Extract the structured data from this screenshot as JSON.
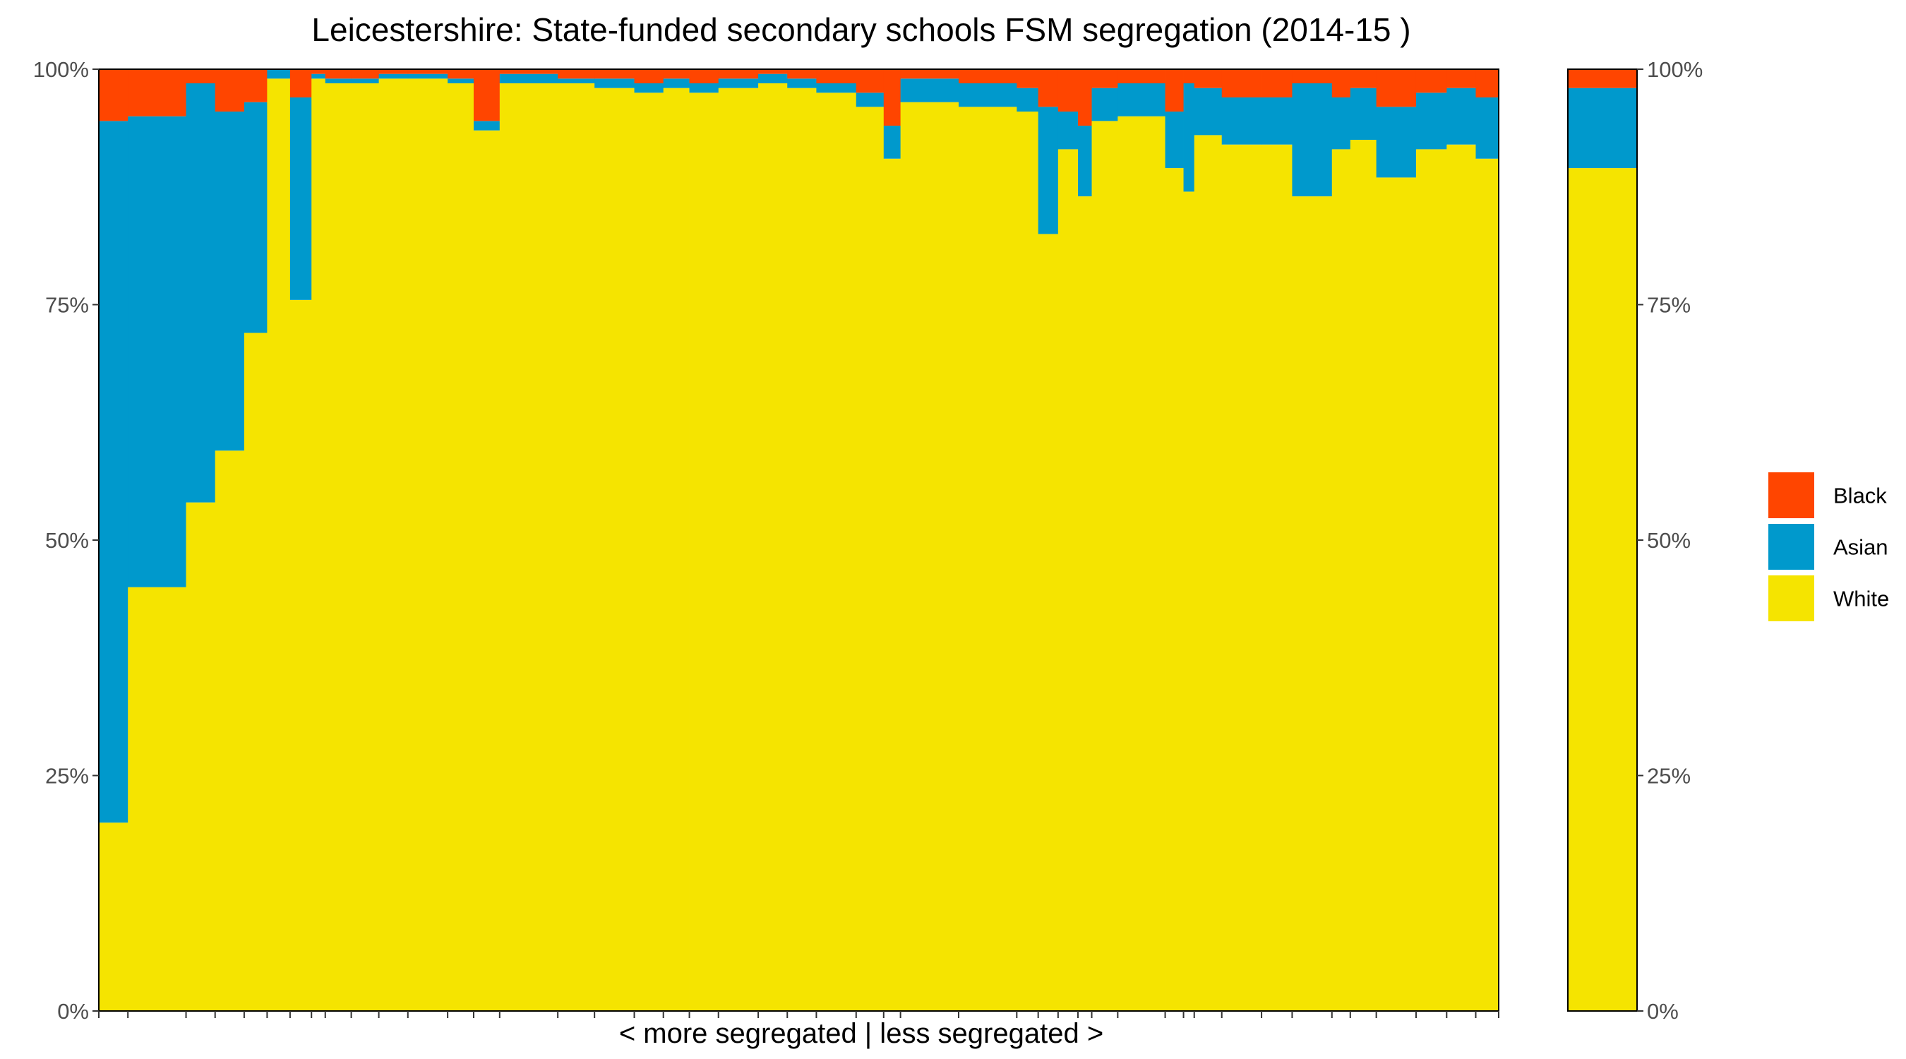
{
  "chart_data": {
    "type": "bar",
    "stacked": true,
    "variable_width": true,
    "title": "Leicestershire: State-funded secondary schools FSM segregation (2014-15 )",
    "xlabel": "< more segregated | less segregated >",
    "ylabel": "",
    "ylim": [
      0,
      1
    ],
    "y_ticks": [
      "0%",
      "25%",
      "50%",
      "75%",
      "100%"
    ],
    "series_order": [
      "White",
      "Asian",
      "Black"
    ],
    "colors": {
      "White": "#f5e400",
      "Asian": "#0099cc",
      "Black": "#ff4500"
    },
    "legend": {
      "position": "right",
      "entries": [
        "Black",
        "Asian",
        "White"
      ]
    },
    "schools": [
      {
        "w": 0.95,
        "white": 0.2,
        "asian": 0.745
      },
      {
        "w": 1.9,
        "white": 0.45,
        "asian": 0.5
      },
      {
        "w": 0.95,
        "white": 0.54,
        "asian": 0.445
      },
      {
        "w": 0.95,
        "white": 0.595,
        "asian": 0.36
      },
      {
        "w": 0.75,
        "white": 0.72,
        "asian": 0.245
      },
      {
        "w": 0.75,
        "white": 0.99,
        "asian": 0.01
      },
      {
        "w": 0.7,
        "white": 0.755,
        "asian": 0.215
      },
      {
        "w": 0.45,
        "white": 0.99,
        "asian": 0.005
      },
      {
        "w": 0.85,
        "white": 0.985,
        "asian": 0.005
      },
      {
        "w": 0.9,
        "white": 0.985,
        "asian": 0.005
      },
      {
        "w": 0.95,
        "white": 0.99,
        "asian": 0.005
      },
      {
        "w": 1.3,
        "white": 0.99,
        "asian": 0.005
      },
      {
        "w": 0.85,
        "white": 0.985,
        "asian": 0.005
      },
      {
        "w": 0.85,
        "white": 0.935,
        "asian": 0.01
      },
      {
        "w": 1.9,
        "white": 0.985,
        "asian": 0.01
      },
      {
        "w": 1.2,
        "white": 0.985,
        "asian": 0.005
      },
      {
        "w": 1.3,
        "white": 0.98,
        "asian": 0.01
      },
      {
        "w": 0.95,
        "white": 0.975,
        "asian": 0.01
      },
      {
        "w": 0.85,
        "white": 0.98,
        "asian": 0.01
      },
      {
        "w": 0.95,
        "white": 0.975,
        "asian": 0.01
      },
      {
        "w": 1.3,
        "white": 0.98,
        "asian": 0.01
      },
      {
        "w": 0.95,
        "white": 0.985,
        "asian": 0.01
      },
      {
        "w": 0.95,
        "white": 0.98,
        "asian": 0.01
      },
      {
        "w": 1.3,
        "white": 0.975,
        "asian": 0.01
      },
      {
        "w": 0.9,
        "white": 0.96,
        "asian": 0.015
      },
      {
        "w": 0.55,
        "white": 0.905,
        "asian": 0.035
      },
      {
        "w": 1.9,
        "white": 0.965,
        "asian": 0.025
      },
      {
        "w": 1.9,
        "white": 0.96,
        "asian": 0.025
      },
      {
        "w": 0.7,
        "white": 0.955,
        "asian": 0.025
      },
      {
        "w": 0.65,
        "white": 0.825,
        "asian": 0.135
      },
      {
        "w": 0.65,
        "white": 0.915,
        "asian": 0.04
      },
      {
        "w": 0.45,
        "white": 0.865,
        "asian": 0.075
      },
      {
        "w": 0.85,
        "white": 0.945,
        "asian": 0.035
      },
      {
        "w": 1.55,
        "white": 0.95,
        "asian": 0.035
      },
      {
        "w": 0.6,
        "white": 0.895,
        "asian": 0.06
      },
      {
        "w": 0.35,
        "white": 0.87,
        "asian": 0.115
      },
      {
        "w": 0.9,
        "white": 0.93,
        "asian": 0.05
      },
      {
        "w": 1.3,
        "white": 0.92,
        "asian": 0.05
      },
      {
        "w": 1.0,
        "white": 0.92,
        "asian": 0.05
      },
      {
        "w": 1.3,
        "white": 0.865,
        "asian": 0.12
      },
      {
        "w": 0.6,
        "white": 0.915,
        "asian": 0.055
      },
      {
        "w": 0.85,
        "white": 0.925,
        "asian": 0.055
      },
      {
        "w": 1.3,
        "white": 0.885,
        "asian": 0.075
      },
      {
        "w": 1.0,
        "white": 0.915,
        "asian": 0.06
      },
      {
        "w": 0.95,
        "white": 0.92,
        "asian": 0.06
      },
      {
        "w": 0.75,
        "white": 0.905,
        "asian": 0.065
      }
    ],
    "overall": {
      "white": 0.895,
      "asian": 0.085
    }
  }
}
